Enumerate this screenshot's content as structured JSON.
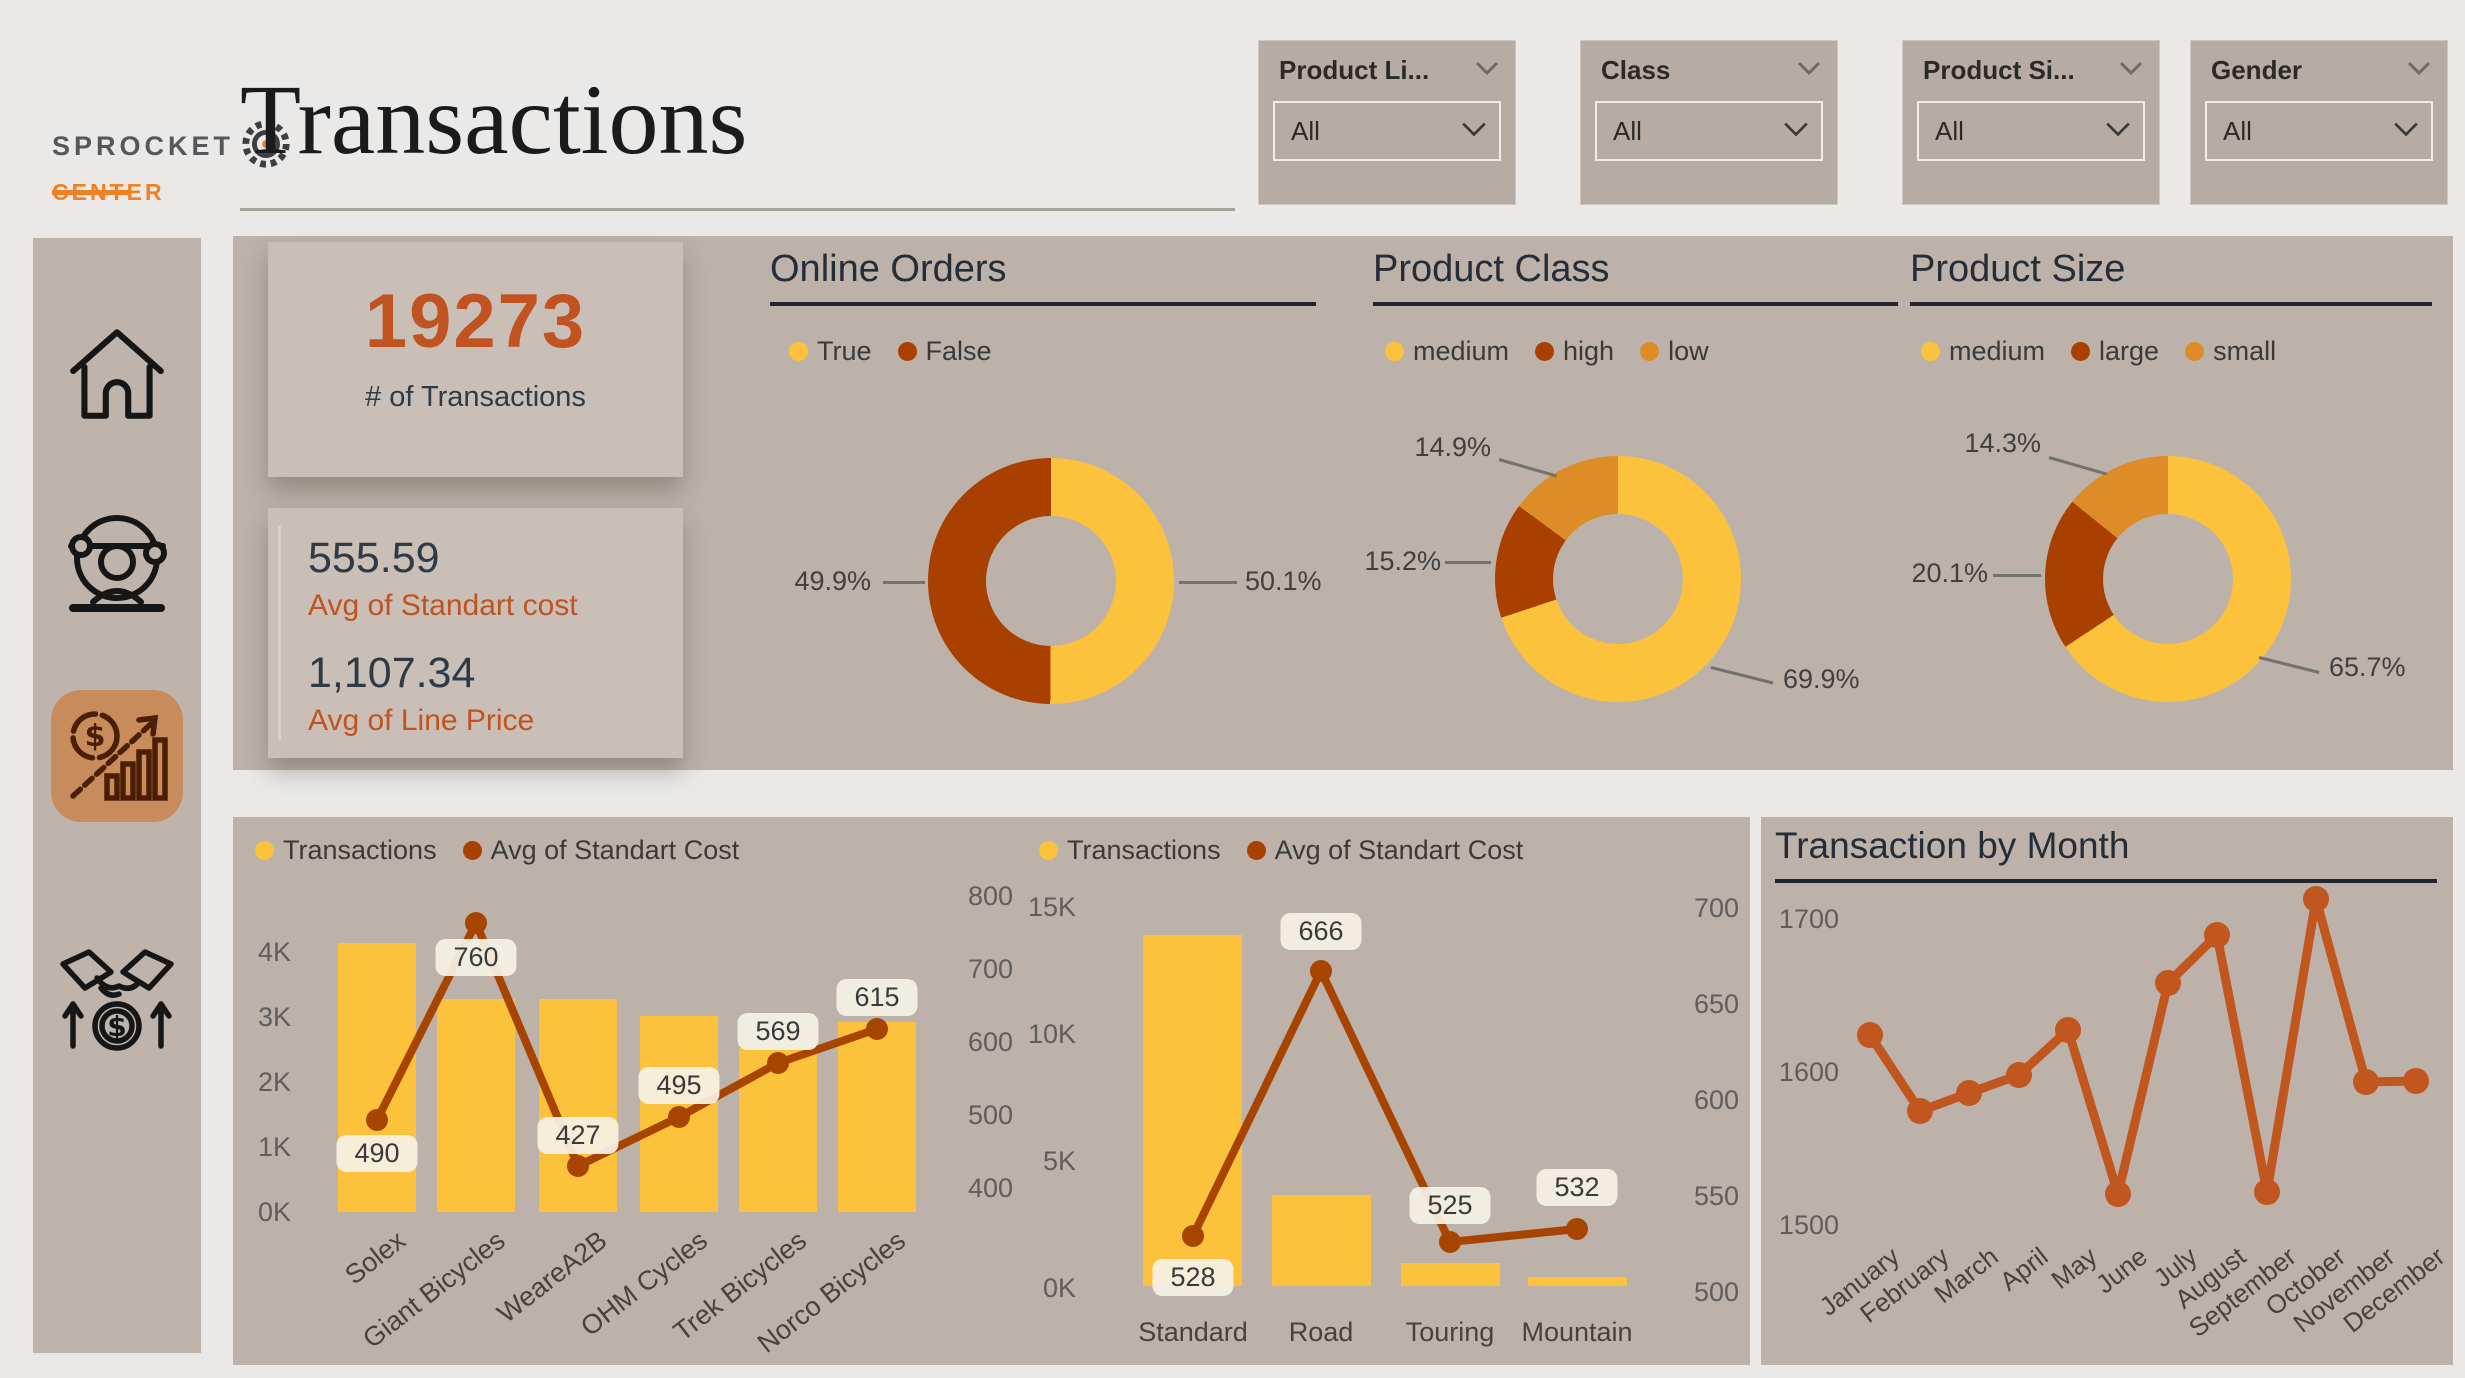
{
  "header": {
    "logo": {
      "line1": "SPROCKET",
      "line2": "CENTER"
    },
    "title": "Transactions"
  },
  "filters": [
    {
      "label": "Product Li...",
      "value": "All"
    },
    {
      "label": "Class",
      "value": "All"
    },
    {
      "label": "Product Si...",
      "value": "All"
    },
    {
      "label": "Gender",
      "value": "All"
    }
  ],
  "sidebar": {
    "icons": [
      "home-icon",
      "customer-globe-icon",
      "sales-growth-icon",
      "deal-handshake-icon"
    ],
    "active": "sales-growth-icon"
  },
  "kpis": {
    "transactions": {
      "value": "19273",
      "label": "# of Transactions"
    },
    "avg_standart_cost": {
      "value": "555.59",
      "label": "Avg of Standart cost"
    },
    "avg_line_price": {
      "value": "1,107.34",
      "label": "Avg of Line Price"
    }
  },
  "colors": {
    "yellow": "#FCC23C",
    "rust": "#A94000",
    "orange": "#DE8C28",
    "combo_line": "#A64400",
    "month_line": "#C1561E",
    "kpi_accent": "#C0531F",
    "panel": "#BCB2A9"
  },
  "chart_data": [
    {
      "id": "online-orders",
      "type": "pie",
      "title": "Online Orders",
      "labels": [
        "True",
        "False"
      ],
      "values": [
        50.1,
        49.9
      ],
      "colors_keys": [
        "yellow",
        "rust"
      ],
      "callouts": [
        "50.1%",
        "49.9%"
      ]
    },
    {
      "id": "product-class",
      "type": "pie",
      "title": "Product Class",
      "labels": [
        "medium",
        "high",
        "low"
      ],
      "values": [
        69.9,
        15.2,
        14.9
      ],
      "colors_keys": [
        "yellow",
        "rust",
        "orange"
      ],
      "callouts": [
        "69.9%",
        "15.2%",
        "14.9%"
      ]
    },
    {
      "id": "product-size",
      "type": "pie",
      "title": "Product Size",
      "labels": [
        "medium",
        "large",
        "small"
      ],
      "values": [
        65.7,
        20.1,
        14.3
      ],
      "colors_keys": [
        "yellow",
        "rust",
        "orange"
      ],
      "callouts": [
        "65.7%",
        "20.1%",
        "14.3%"
      ]
    },
    {
      "id": "transactions-by-brand",
      "type": "bar",
      "legend": [
        "Transactions",
        "Avg of Standart Cost"
      ],
      "categories": [
        "Solex",
        "Giant Bicycles",
        "WeareA2B",
        "OHM Cycles",
        "Trek Bicycles",
        "Norco Bicycles"
      ],
      "series": [
        {
          "name": "Transactions",
          "values": [
            4100,
            3250,
            3250,
            3000,
            2500,
            2900
          ]
        },
        {
          "name": "Avg of Standart Cost",
          "values": [
            490,
            760,
            427,
            495,
            569,
            615
          ]
        }
      ],
      "left_axis": {
        "labels": [
          "4K",
          "3K",
          "2K",
          "1K",
          "0K"
        ],
        "min": 0,
        "max": 4000
      },
      "right_axis": {
        "labels": [
          "800",
          "700",
          "600",
          "500",
          "400"
        ],
        "min": 400,
        "max": 800
      }
    },
    {
      "id": "transactions-by-product-line",
      "type": "bar",
      "legend": [
        "Transactions",
        "Avg of Standart Cost"
      ],
      "categories": [
        "Standard",
        "Road",
        "Touring",
        "Mountain"
      ],
      "series": [
        {
          "name": "Transactions",
          "values": [
            13800,
            3600,
            900,
            350
          ]
        },
        {
          "name": "Avg of Standart Cost",
          "values": [
            528,
            666,
            525,
            532
          ]
        }
      ],
      "left_axis": {
        "labels": [
          "15K",
          "10K",
          "5K",
          "0K"
        ],
        "min": 0,
        "max": 15000
      },
      "right_axis": {
        "labels": [
          "700",
          "650",
          "600",
          "550",
          "500"
        ],
        "min": 500,
        "max": 700
      }
    },
    {
      "id": "transaction-by-month",
      "type": "line",
      "title": "Transaction by Month",
      "categories": [
        "January",
        "February",
        "March",
        "April",
        "May",
        "June",
        "July",
        "August",
        "September",
        "October",
        "November",
        "December"
      ],
      "values": [
        1623,
        1573,
        1585,
        1597,
        1626,
        1519,
        1657,
        1688,
        1520,
        1712,
        1592,
        1593
      ],
      "y_axis": {
        "labels": [
          "1700",
          "1600",
          "1500"
        ],
        "min": 1500,
        "max": 1730
      }
    }
  ]
}
